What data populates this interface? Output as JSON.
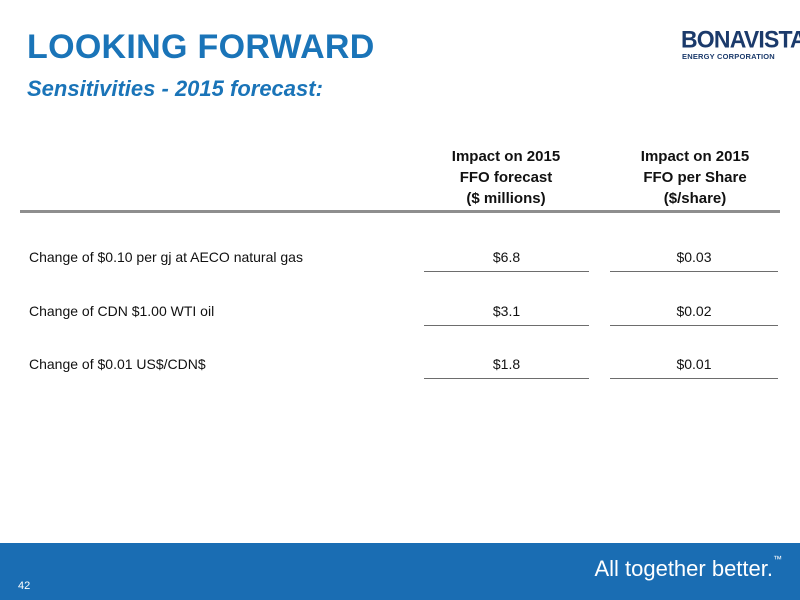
{
  "header": {
    "title": "LOOKING FORWARD",
    "subtitle": "Sensitivities - 2015 forecast:"
  },
  "logo": {
    "name": "BONAVISTA",
    "tagline": "ENERGY CORPORATION"
  },
  "table": {
    "columns": [
      {
        "lines": [
          "Impact on 2015",
          "FFO forecast",
          "($ millions)"
        ]
      },
      {
        "lines": [
          "Impact on 2015",
          "FFO per Share",
          "($/share)"
        ]
      }
    ],
    "rows": [
      {
        "label": "Change of $0.10 per gj at AECO natural gas",
        "ffo": "$6.8",
        "per_share": "$0.03"
      },
      {
        "label": "Change of CDN $1.00 WTI oil",
        "ffo": "$3.1",
        "per_share": "$0.02"
      },
      {
        "label": "Change of $0.01 US$/CDN$",
        "ffo": "$1.8",
        "per_share": "$0.01"
      }
    ]
  },
  "footer": {
    "page_number": "42",
    "slogan": "All together better.",
    "trademark": "™"
  },
  "colors": {
    "title_blue": "#1a74b8",
    "footer_blue": "#1a6db3",
    "logo_navy": "#1b3a6b"
  }
}
